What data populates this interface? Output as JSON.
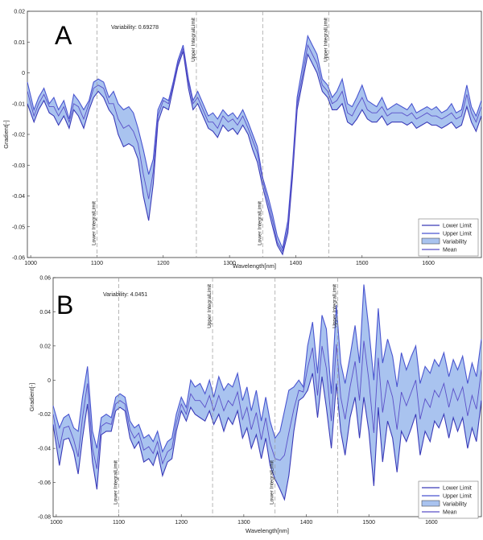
{
  "chart_data": [
    {
      "type": "area",
      "panel_label": "A",
      "annotation": "Variability: 0.69278",
      "xlabel": "Wavelength[nm]",
      "ylabel": "Gradient[-]",
      "xlim": [
        995,
        1680
      ],
      "ylim": [
        -0.06,
        0.02
      ],
      "xticks": [
        1000,
        1100,
        1200,
        1300,
        1400,
        1500,
        1600
      ],
      "yticks": [
        0.02,
        0.01,
        0,
        -0.01,
        -0.02,
        -0.03,
        -0.04,
        -0.05,
        -0.06
      ],
      "ytick_labels": [
        "0.02",
        "0.01",
        "0",
        "-0.01",
        "-0.02",
        "-0.03",
        "-0.04",
        "-0.05",
        "-0.06"
      ],
      "vertical_lines": [
        {
          "x": 1100,
          "label": "Lower IntegralLimit"
        },
        {
          "x": 1250,
          "label": "Upper IntegralLimit"
        },
        {
          "x": 1350,
          "label": "Lower IntegralLimit"
        },
        {
          "x": 1450,
          "label": "Upper IntegralLimit"
        }
      ],
      "legend": [
        "Lower Limit",
        "Upper Limit",
        "Variability",
        "Mean"
      ],
      "colors": {
        "lower": "#3a3ab8",
        "upper": "#4a55d0",
        "band": "#a9c3ef",
        "mean": "#5a4fc8"
      },
      "x": [
        995,
        1005,
        1012,
        1020,
        1028,
        1035,
        1042,
        1050,
        1058,
        1065,
        1072,
        1080,
        1088,
        1095,
        1102,
        1110,
        1118,
        1125,
        1132,
        1140,
        1148,
        1155,
        1162,
        1170,
        1178,
        1185,
        1192,
        1200,
        1208,
        1215,
        1222,
        1230,
        1238,
        1245,
        1252,
        1260,
        1268,
        1275,
        1282,
        1290,
        1298,
        1305,
        1312,
        1320,
        1328,
        1335,
        1342,
        1350,
        1358,
        1365,
        1372,
        1380,
        1388,
        1395,
        1402,
        1410,
        1418,
        1425,
        1432,
        1440,
        1448,
        1455,
        1462,
        1470,
        1478,
        1485,
        1492,
        1500,
        1508,
        1515,
        1522,
        1530,
        1538,
        1545,
        1552,
        1560,
        1568,
        1575,
        1582,
        1590,
        1598,
        1605,
        1612,
        1620,
        1628,
        1635,
        1642,
        1650,
        1658,
        1665,
        1672,
        1680
      ],
      "upper": [
        -0.003,
        -0.012,
        -0.008,
        -0.005,
        -0.01,
        -0.008,
        -0.012,
        -0.009,
        -0.015,
        -0.007,
        -0.009,
        -0.012,
        -0.009,
        -0.003,
        -0.002,
        -0.003,
        -0.008,
        -0.006,
        -0.01,
        -0.012,
        -0.011,
        -0.013,
        -0.018,
        -0.025,
        -0.033,
        -0.028,
        -0.012,
        -0.008,
        -0.009,
        -0.003,
        0.004,
        0.009,
        -0.002,
        -0.009,
        -0.006,
        -0.01,
        -0.014,
        -0.013,
        -0.015,
        -0.012,
        -0.014,
        -0.013,
        -0.015,
        -0.012,
        -0.016,
        -0.02,
        -0.024,
        -0.034,
        -0.04,
        -0.046,
        -0.053,
        -0.057,
        -0.048,
        -0.03,
        -0.008,
        0.002,
        0.012,
        0.009,
        0.006,
        -0.002,
        -0.004,
        -0.008,
        -0.006,
        -0.002,
        -0.01,
        -0.011,
        -0.008,
        -0.004,
        -0.009,
        -0.01,
        -0.011,
        -0.008,
        -0.012,
        -0.011,
        -0.01,
        -0.011,
        -0.012,
        -0.01,
        -0.013,
        -0.012,
        -0.011,
        -0.012,
        -0.011,
        -0.013,
        -0.012,
        -0.01,
        -0.013,
        -0.012,
        -0.004,
        -0.011,
        -0.014,
        -0.009
      ],
      "lower": [
        -0.01,
        -0.016,
        -0.012,
        -0.009,
        -0.013,
        -0.014,
        -0.017,
        -0.014,
        -0.018,
        -0.012,
        -0.014,
        -0.018,
        -0.012,
        -0.008,
        -0.006,
        -0.008,
        -0.012,
        -0.014,
        -0.02,
        -0.024,
        -0.023,
        -0.024,
        -0.028,
        -0.04,
        -0.048,
        -0.036,
        -0.016,
        -0.011,
        -0.012,
        -0.005,
        0.002,
        0.007,
        -0.005,
        -0.012,
        -0.01,
        -0.014,
        -0.018,
        -0.019,
        -0.021,
        -0.017,
        -0.019,
        -0.018,
        -0.02,
        -0.017,
        -0.02,
        -0.025,
        -0.029,
        -0.037,
        -0.044,
        -0.05,
        -0.056,
        -0.059,
        -0.052,
        -0.034,
        -0.012,
        -0.003,
        0.006,
        0.003,
        0.0,
        -0.006,
        -0.008,
        -0.012,
        -0.012,
        -0.01,
        -0.016,
        -0.017,
        -0.015,
        -0.012,
        -0.015,
        -0.016,
        -0.016,
        -0.014,
        -0.017,
        -0.016,
        -0.016,
        -0.016,
        -0.017,
        -0.016,
        -0.018,
        -0.017,
        -0.016,
        -0.017,
        -0.017,
        -0.018,
        -0.017,
        -0.016,
        -0.018,
        -0.017,
        -0.011,
        -0.016,
        -0.019,
        -0.014
      ],
      "mean": [
        -0.006,
        -0.014,
        -0.01,
        -0.007,
        -0.011,
        -0.011,
        -0.014,
        -0.011,
        -0.016,
        -0.01,
        -0.011,
        -0.015,
        -0.01,
        -0.005,
        -0.004,
        -0.005,
        -0.01,
        -0.01,
        -0.015,
        -0.018,
        -0.017,
        -0.019,
        -0.023,
        -0.033,
        -0.041,
        -0.032,
        -0.014,
        -0.009,
        -0.01,
        -0.004,
        0.003,
        0.008,
        -0.003,
        -0.01,
        -0.008,
        -0.012,
        -0.016,
        -0.016,
        -0.018,
        -0.014,
        -0.016,
        -0.015,
        -0.017,
        -0.014,
        -0.018,
        -0.022,
        -0.026,
        -0.035,
        -0.042,
        -0.048,
        -0.055,
        -0.058,
        -0.05,
        -0.032,
        -0.01,
        -0.001,
        0.009,
        0.006,
        0.003,
        -0.004,
        -0.006,
        -0.01,
        -0.009,
        -0.006,
        -0.013,
        -0.014,
        -0.011,
        -0.008,
        -0.012,
        -0.013,
        -0.013,
        -0.011,
        -0.014,
        -0.013,
        -0.013,
        -0.013,
        -0.014,
        -0.013,
        -0.015,
        -0.014,
        -0.013,
        -0.014,
        -0.014,
        -0.015,
        -0.014,
        -0.013,
        -0.015,
        -0.014,
        -0.007,
        -0.013,
        -0.016,
        -0.011
      ]
    },
    {
      "type": "area",
      "panel_label": "B",
      "annotation": "Variability: 4.0451",
      "xlabel": "Wavelength[nm]",
      "ylabel": "Gradient[-]",
      "xlim": [
        995,
        1680
      ],
      "ylim": [
        -0.08,
        0.06
      ],
      "xticks": [
        1000,
        1100,
        1200,
        1300,
        1400,
        1500,
        1600
      ],
      "yticks": [
        0.06,
        0.04,
        0.02,
        0,
        -0.02,
        -0.04,
        -0.06,
        -0.08
      ],
      "ytick_labels": [
        "0.06",
        "0.04",
        "0.02",
        "0",
        "-0.02",
        "-0.04",
        "-0.06",
        "-0.08"
      ],
      "vertical_lines": [
        {
          "x": 1100,
          "label": "Lower IntegralLimit"
        },
        {
          "x": 1250,
          "label": "Upper IntegralLimit"
        },
        {
          "x": 1350,
          "label": "Lower IntegralLimit"
        },
        {
          "x": 1450,
          "label": "Upper IntegralLimit"
        }
      ],
      "legend": [
        "Lower Limit",
        "Upper Limit",
        "Variability",
        "Mean"
      ],
      "colors": {
        "lower": "#3a3ab8",
        "upper": "#4a55d0",
        "band": "#a9c3ef",
        "mean": "#5a4fc8"
      },
      "x": [
        995,
        1005,
        1012,
        1020,
        1028,
        1035,
        1042,
        1050,
        1058,
        1065,
        1072,
        1080,
        1088,
        1095,
        1102,
        1110,
        1118,
        1125,
        1132,
        1140,
        1148,
        1155,
        1162,
        1170,
        1178,
        1185,
        1192,
        1200,
        1208,
        1215,
        1222,
        1230,
        1238,
        1245,
        1252,
        1260,
        1268,
        1275,
        1282,
        1290,
        1298,
        1305,
        1312,
        1320,
        1328,
        1335,
        1342,
        1350,
        1358,
        1365,
        1372,
        1380,
        1388,
        1395,
        1402,
        1410,
        1418,
        1425,
        1432,
        1440,
        1448,
        1455,
        1462,
        1470,
        1478,
        1485,
        1492,
        1500,
        1508,
        1515,
        1522,
        1530,
        1538,
        1545,
        1552,
        1560,
        1568,
        1575,
        1582,
        1590,
        1598,
        1605,
        1612,
        1620,
        1628,
        1635,
        1642,
        1650,
        1658,
        1665,
        1672,
        1680
      ],
      "upper": [
        -0.015,
        -0.028,
        -0.022,
        -0.02,
        -0.028,
        -0.03,
        -0.01,
        0.008,
        -0.03,
        -0.04,
        -0.022,
        -0.02,
        -0.022,
        -0.01,
        -0.008,
        -0.01,
        -0.024,
        -0.028,
        -0.026,
        -0.034,
        -0.032,
        -0.036,
        -0.03,
        -0.042,
        -0.036,
        -0.034,
        -0.02,
        -0.01,
        -0.016,
        0.0,
        -0.004,
        -0.002,
        -0.008,
        0.0,
        -0.01,
        0.002,
        -0.006,
        -0.002,
        -0.004,
        0.004,
        -0.012,
        -0.004,
        -0.018,
        -0.006,
        -0.024,
        -0.01,
        -0.024,
        -0.034,
        -0.03,
        -0.018,
        -0.006,
        -0.004,
        0.0,
        -0.004,
        0.02,
        0.034,
        0.004,
        0.038,
        0.03,
        -0.008,
        0.044,
        0.01,
        -0.002,
        0.014,
        0.032,
        0.01,
        0.056,
        0.03,
        0.0,
        0.042,
        0.01,
        0.024,
        0.014,
        -0.004,
        0.016,
        0.006,
        0.014,
        0.02,
        -0.002,
        0.008,
        0.004,
        0.012,
        0.008,
        0.016,
        0.002,
        0.012,
        0.006,
        0.014,
        -0.002,
        0.01,
        0.002,
        0.024
      ],
      "lower": [
        -0.026,
        -0.05,
        -0.035,
        -0.034,
        -0.042,
        -0.055,
        -0.034,
        -0.014,
        -0.048,
        -0.064,
        -0.032,
        -0.03,
        -0.03,
        -0.018,
        -0.016,
        -0.018,
        -0.034,
        -0.04,
        -0.036,
        -0.048,
        -0.046,
        -0.05,
        -0.042,
        -0.056,
        -0.048,
        -0.046,
        -0.03,
        -0.018,
        -0.024,
        -0.016,
        -0.02,
        -0.022,
        -0.024,
        -0.018,
        -0.026,
        -0.02,
        -0.03,
        -0.022,
        -0.026,
        -0.018,
        -0.034,
        -0.028,
        -0.04,
        -0.032,
        -0.046,
        -0.034,
        -0.05,
        -0.058,
        -0.064,
        -0.07,
        -0.056,
        -0.03,
        -0.012,
        -0.01,
        -0.006,
        0.004,
        -0.022,
        0.002,
        -0.016,
        -0.04,
        -0.002,
        -0.03,
        -0.044,
        -0.022,
        -0.01,
        -0.034,
        -0.01,
        -0.03,
        -0.062,
        -0.016,
        -0.048,
        -0.024,
        -0.034,
        -0.054,
        -0.03,
        -0.036,
        -0.028,
        -0.02,
        -0.044,
        -0.03,
        -0.036,
        -0.024,
        -0.028,
        -0.02,
        -0.034,
        -0.022,
        -0.03,
        -0.022,
        -0.04,
        -0.028,
        -0.036,
        -0.012
      ],
      "mean": [
        -0.02,
        -0.04,
        -0.028,
        -0.027,
        -0.035,
        -0.045,
        -0.022,
        -0.002,
        -0.04,
        -0.052,
        -0.027,
        -0.025,
        -0.026,
        -0.014,
        -0.012,
        -0.014,
        -0.029,
        -0.034,
        -0.031,
        -0.041,
        -0.039,
        -0.043,
        -0.036,
        -0.049,
        -0.042,
        -0.04,
        -0.025,
        -0.014,
        -0.02,
        -0.008,
        -0.012,
        -0.012,
        -0.016,
        -0.009,
        -0.018,
        -0.009,
        -0.018,
        -0.012,
        -0.015,
        -0.007,
        -0.023,
        -0.016,
        -0.029,
        -0.019,
        -0.035,
        -0.022,
        -0.037,
        -0.046,
        -0.047,
        -0.044,
        -0.031,
        -0.017,
        -0.006,
        -0.007,
        0.007,
        0.019,
        -0.009,
        0.02,
        0.007,
        -0.024,
        0.021,
        -0.01,
        -0.023,
        -0.004,
        0.011,
        -0.012,
        0.023,
        0.0,
        -0.031,
        0.013,
        -0.019,
        0.0,
        -0.01,
        -0.029,
        -0.007,
        -0.015,
        -0.007,
        0.0,
        -0.023,
        -0.011,
        -0.016,
        -0.006,
        -0.01,
        -0.002,
        -0.016,
        -0.005,
        -0.012,
        -0.004,
        -0.021,
        -0.009,
        -0.017,
        0.006
      ]
    }
  ]
}
